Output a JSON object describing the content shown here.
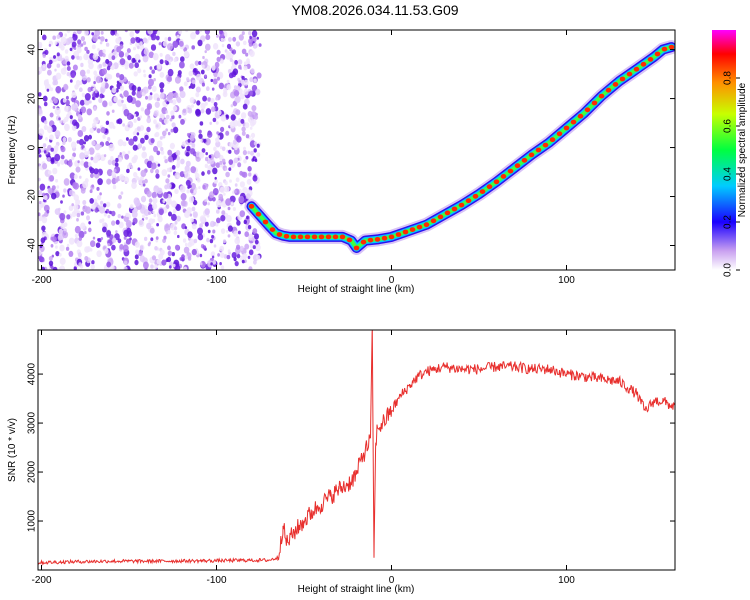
{
  "title": "YM08.2026.034.11.53.G09",
  "chart_data": [
    {
      "type": "heatmap",
      "xlabel": "Height of straight line (km)",
      "ylabel": "Frequency (Hz)",
      "xlim": [
        -202,
        162
      ],
      "ylim": [
        -50,
        48
      ],
      "x_ticks": [
        -200,
        -100,
        0,
        100
      ],
      "y_ticks": [
        -40,
        -20,
        0,
        20,
        40
      ],
      "colorbar": {
        "label": "Normalized spectral amplitude",
        "range": [
          0,
          1
        ],
        "ticks": [
          "0.0",
          "0.2",
          "0.4",
          "0.6",
          "0.8"
        ]
      },
      "noise_region": {
        "x": [
          -202,
          -75
        ],
        "y": [
          -50,
          48
        ]
      },
      "ridge": {
        "x": [
          -80,
          -75,
          -70,
          -66,
          -62,
          -58,
          -45,
          -34,
          -28,
          -23,
          -20,
          -15,
          -8,
          0,
          10,
          20,
          30,
          40,
          50,
          60,
          70,
          80,
          90,
          100,
          110,
          120,
          130,
          140,
          150,
          155,
          160
        ],
        "y": [
          -24,
          -28,
          -32,
          -35,
          -36,
          -36.5,
          -36.5,
          -36.5,
          -36.5,
          -38,
          -41,
          -38,
          -37.5,
          -36.5,
          -34,
          -31.5,
          -27.5,
          -23.5,
          -19,
          -14,
          -8.5,
          -3,
          2,
          8,
          14,
          21,
          27,
          32,
          37,
          40,
          41
        ]
      }
    },
    {
      "type": "line",
      "xlabel": "Height of straight line (km)",
      "ylabel": "SNR (10 * v/v)",
      "xlim": [
        -202,
        162
      ],
      "ylim": [
        0,
        4900
      ],
      "x_ticks": [
        -200,
        -100,
        0,
        100
      ],
      "y_ticks": [
        1000,
        2000,
        3000,
        4000
      ],
      "color": "#e8302e",
      "x": [
        -202,
        -180,
        -160,
        -140,
        -120,
        -100,
        -80,
        -70,
        -65,
        -62,
        -60,
        -55,
        -50,
        -45,
        -40,
        -35,
        -30,
        -25,
        -20,
        -17,
        -14,
        -12,
        -11,
        -10,
        -9,
        -8,
        -5,
        0,
        5,
        10,
        15,
        20,
        25,
        30,
        40,
        50,
        60,
        70,
        80,
        90,
        100,
        110,
        120,
        130,
        140,
        145,
        150,
        155,
        160
      ],
      "y": [
        150,
        170,
        180,
        180,
        185,
        190,
        200,
        200,
        250,
        900,
        550,
        800,
        1000,
        1200,
        1350,
        1500,
        1650,
        1750,
        1950,
        2300,
        2500,
        2700,
        4900,
        250,
        2600,
        2900,
        3000,
        3250,
        3550,
        3750,
        3950,
        4050,
        4100,
        4150,
        4100,
        4100,
        4150,
        4150,
        4100,
        4100,
        4000,
        3950,
        3900,
        3850,
        3600,
        3250,
        3450,
        3450,
        3350
      ]
    }
  ]
}
